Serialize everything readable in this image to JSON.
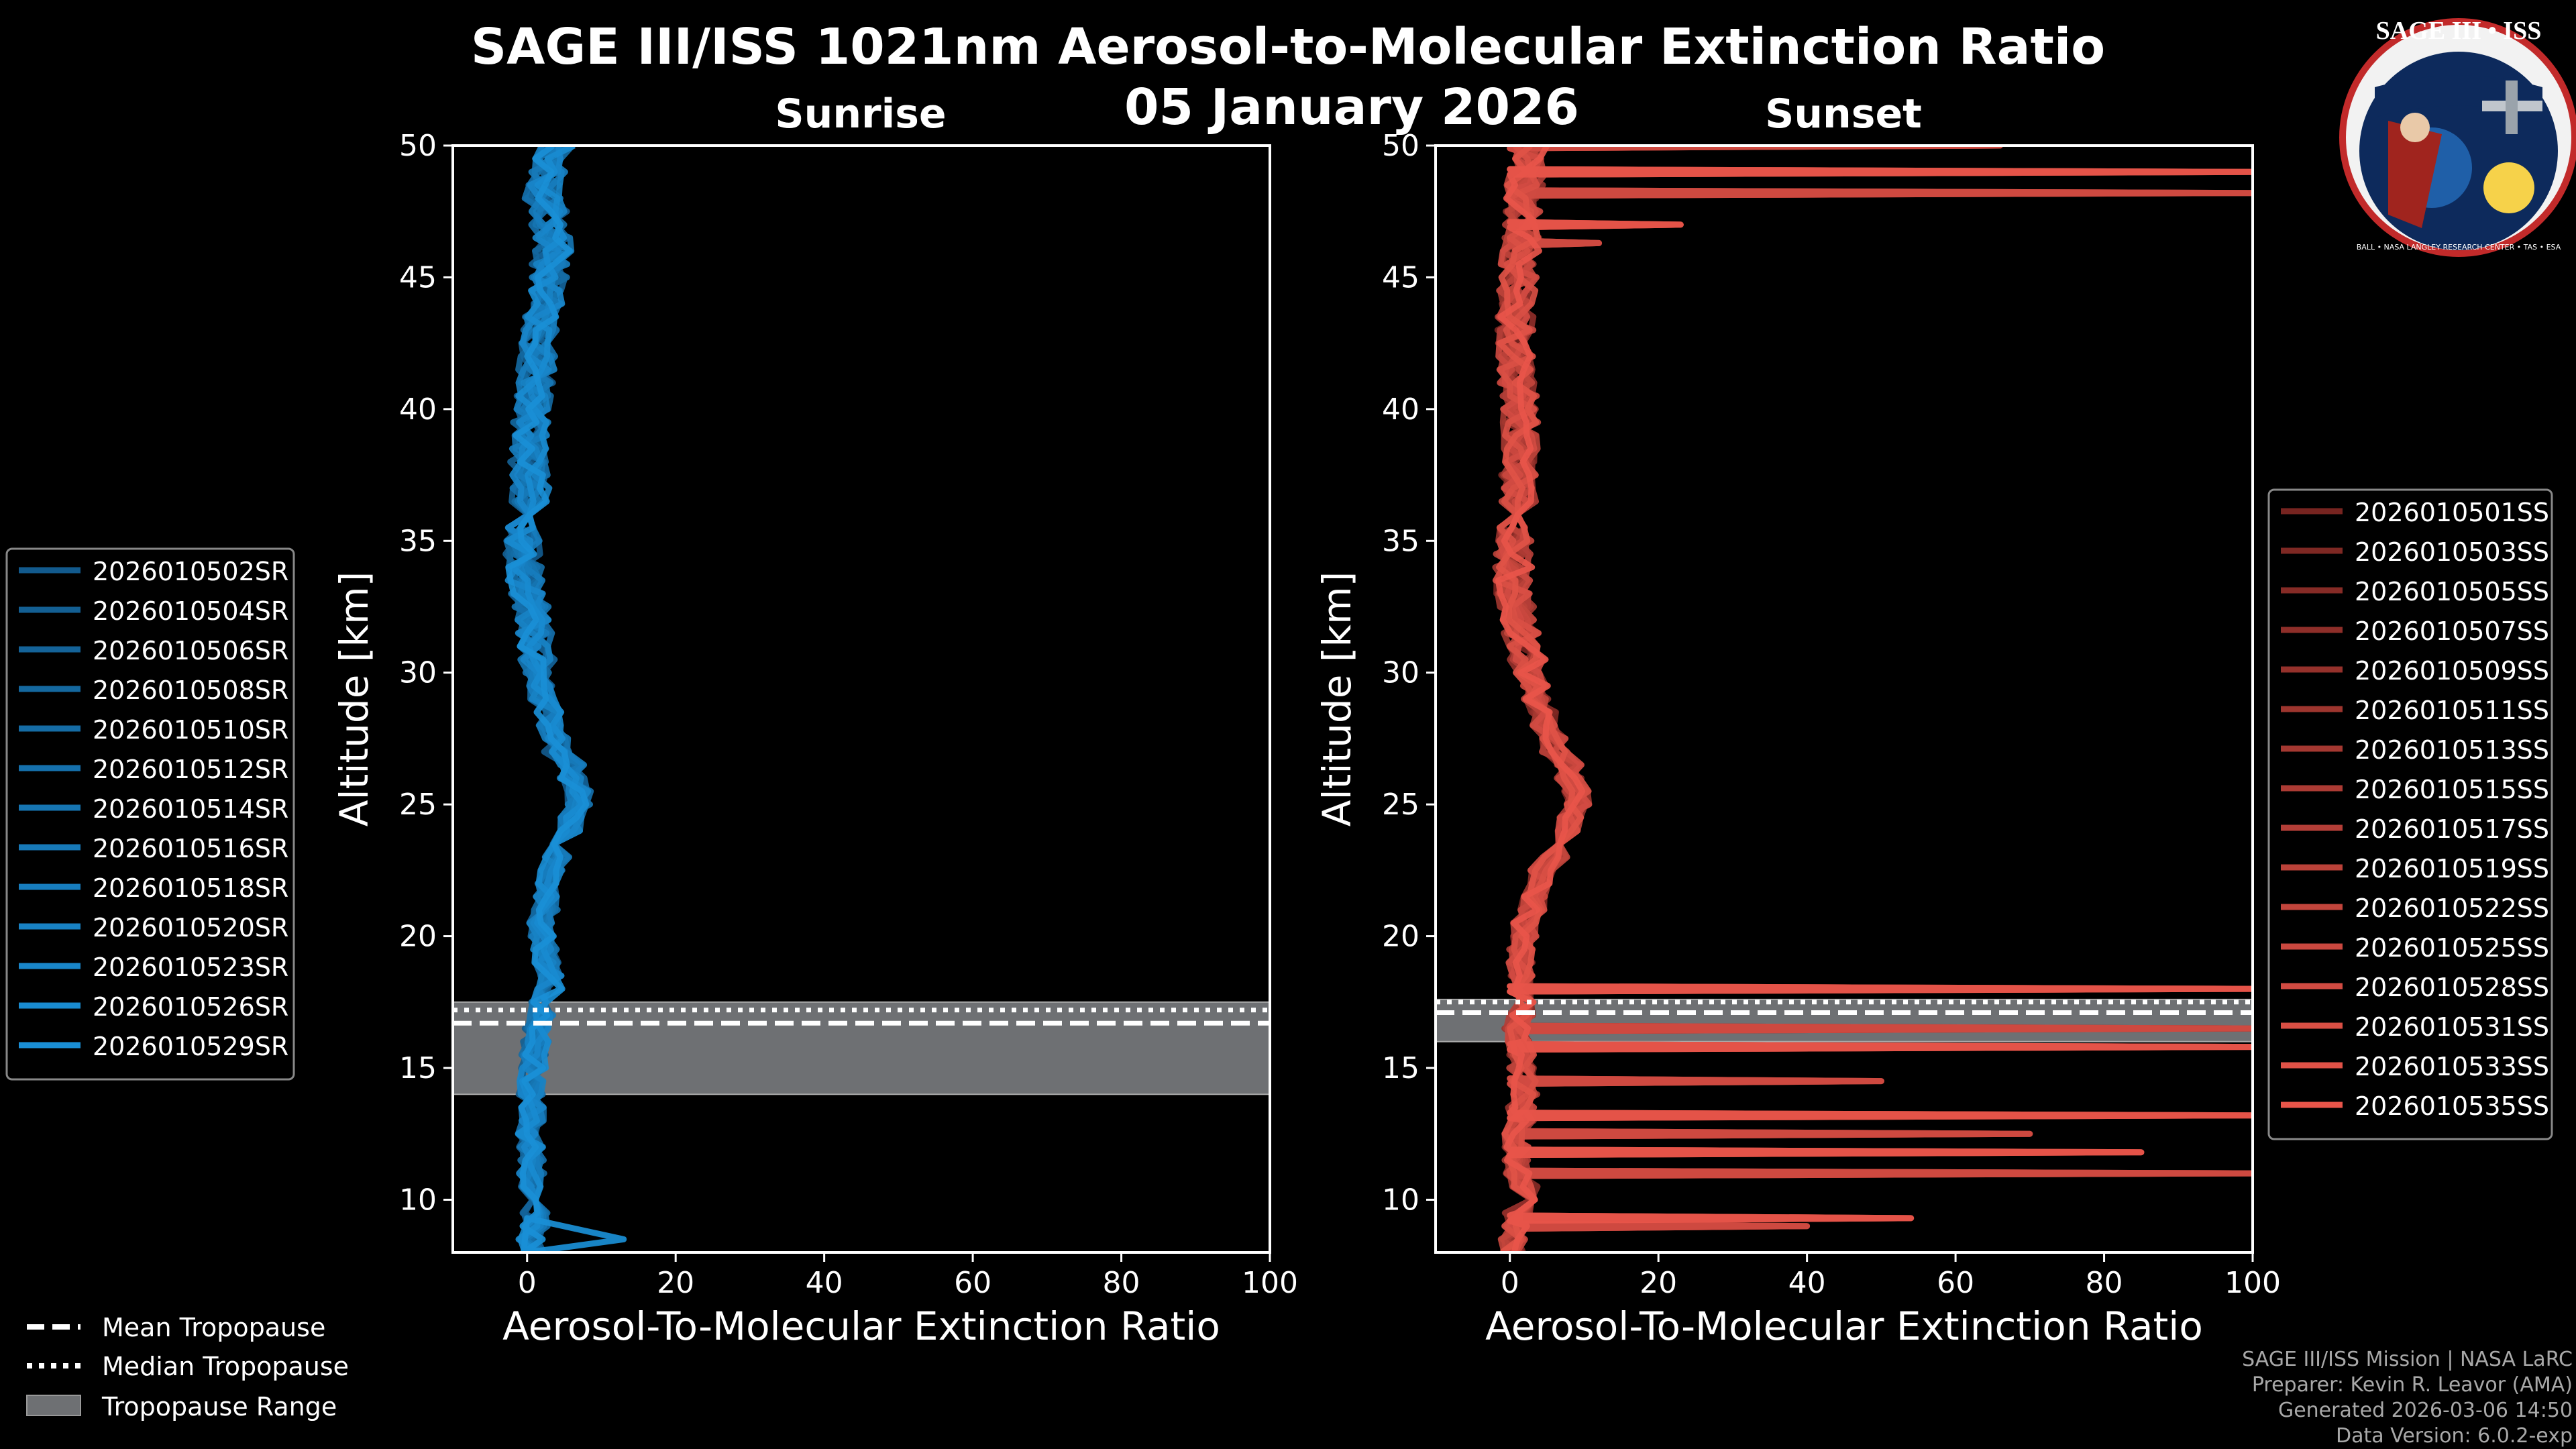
{
  "title_line1": "SAGE III/ISS 1021nm Aerosol-to-Molecular Extinction Ratio",
  "title_line2": "05 January 2026",
  "logo": {
    "text": "SAGE III • ISS",
    "ring": "BALL • NASA LANGLEY RESEARCH CENTER • TAS • ESA"
  },
  "footer": [
    "SAGE III/ISS Mission | NASA LaRC",
    "Preparer: Kevin R. Leavor (AMA)",
    "Generated 2026-03-06 14:50",
    "Data Version: 6.0.2-exp"
  ],
  "tropo_legend": [
    "Mean Tropopause",
    "Median Tropopause",
    "Tropopause Range"
  ],
  "colors": {
    "sunrise": "#1a8fd6",
    "sunset": "#e8554a",
    "tropo_fill": "#6e7073"
  },
  "chart_data": [
    {
      "type": "line",
      "title": "Sunrise",
      "xlabel": "Aerosol-To-Molecular Extinction Ratio",
      "ylabel": "Altitude [km]",
      "xlim": [
        -10,
        100
      ],
      "ylim": [
        8,
        50
      ],
      "xticks": [
        0,
        20,
        40,
        60,
        80,
        100
      ],
      "yticks": [
        10,
        15,
        20,
        25,
        30,
        35,
        40,
        45,
        50
      ],
      "tropopause": {
        "mean": 16.7,
        "median": 17.2,
        "range": [
          14.0,
          17.5
        ]
      },
      "profile_points": {
        "alt": [
          8,
          9,
          10,
          11,
          12,
          13,
          14,
          15,
          16,
          17,
          18,
          19,
          20,
          21,
          22,
          23,
          24,
          25,
          26,
          27,
          28,
          29,
          30,
          31,
          32,
          33,
          34,
          35,
          36,
          37,
          38,
          39,
          40,
          41,
          42,
          43,
          44,
          45,
          46,
          47,
          48,
          49,
          50
        ],
        "val": [
          0.5,
          1,
          0.8,
          0.6,
          0.5,
          0.5,
          0.6,
          0.8,
          1.2,
          2,
          3,
          2.5,
          2,
          2.5,
          3,
          4,
          6,
          7,
          6,
          4,
          3,
          2,
          1.5,
          1,
          0.5,
          -0.2,
          -0.5,
          -0.3,
          0.2,
          0.5,
          0.2,
          0.5,
          0.8,
          1.2,
          1.5,
          2,
          2.5,
          3,
          3.5,
          3,
          2,
          3,
          4
        ]
      },
      "series": [
        {
          "name": "2026010502SR"
        },
        {
          "name": "2026010504SR"
        },
        {
          "name": "2026010506SR"
        },
        {
          "name": "2026010508SR"
        },
        {
          "name": "2026010510SR"
        },
        {
          "name": "2026010512SR"
        },
        {
          "name": "2026010514SR"
        },
        {
          "name": "2026010516SR"
        },
        {
          "name": "2026010518SR"
        },
        {
          "name": "2026010520SR"
        },
        {
          "name": "2026010523SR"
        },
        {
          "name": "2026010526SR"
        },
        {
          "name": "2026010529SR"
        }
      ]
    },
    {
      "type": "line",
      "title": "Sunset",
      "xlabel": "Aerosol-To-Molecular Extinction Ratio",
      "ylabel": "Altitude [km]",
      "xlim": [
        -10,
        100
      ],
      "ylim": [
        8,
        50
      ],
      "xticks": [
        0,
        20,
        40,
        60,
        80,
        100
      ],
      "yticks": [
        10,
        15,
        20,
        25,
        30,
        35,
        40,
        45,
        50
      ],
      "tropopause": {
        "mean": 17.1,
        "median": 17.5,
        "range": [
          16.0,
          17.6
        ]
      },
      "profile_points": {
        "alt": [
          8,
          9,
          10,
          11,
          12,
          13,
          14,
          15,
          16,
          17,
          18,
          19,
          20,
          21,
          22,
          23,
          24,
          25,
          26,
          27,
          28,
          29,
          30,
          31,
          32,
          33,
          34,
          35,
          36,
          37,
          38,
          39,
          40,
          41,
          42,
          43,
          44,
          45,
          46,
          47,
          48,
          49,
          50
        ],
        "val": [
          0.5,
          1,
          2,
          1,
          1,
          1.5,
          2,
          1.5,
          1,
          1.5,
          1.8,
          1.5,
          2,
          3,
          4.5,
          6,
          8,
          9,
          8,
          6,
          4.5,
          3.5,
          2.5,
          1.5,
          0.8,
          0.5,
          0.5,
          0.8,
          1,
          1.2,
          1.5,
          1.5,
          1.2,
          1,
          0.8,
          0.8,
          1,
          1.2,
          1.5,
          1.8,
          2,
          2.5,
          3
        ]
      },
      "spikes": [
        {
          "alt": 50.0,
          "x": 66
        },
        {
          "alt": 49.0,
          "x": 100
        },
        {
          "alt": 48.2,
          "x": 100
        },
        {
          "alt": 47.0,
          "x": 23
        },
        {
          "alt": 46.3,
          "x": 12
        },
        {
          "alt": 18.0,
          "x": 100
        },
        {
          "alt": 16.5,
          "x": 100
        },
        {
          "alt": 15.8,
          "x": 100
        },
        {
          "alt": 14.5,
          "x": 50
        },
        {
          "alt": 13.2,
          "x": 100
        },
        {
          "alt": 12.5,
          "x": 70
        },
        {
          "alt": 11.8,
          "x": 85
        },
        {
          "alt": 11.0,
          "x": 100
        },
        {
          "alt": 9.3,
          "x": 54
        },
        {
          "alt": 9.0,
          "x": 40
        }
      ],
      "series": [
        {
          "name": "2026010501SS"
        },
        {
          "name": "2026010503SS"
        },
        {
          "name": "2026010505SS"
        },
        {
          "name": "2026010507SS"
        },
        {
          "name": "2026010509SS"
        },
        {
          "name": "2026010511SS"
        },
        {
          "name": "2026010513SS"
        },
        {
          "name": "2026010515SS"
        },
        {
          "name": "2026010517SS"
        },
        {
          "name": "2026010519SS"
        },
        {
          "name": "2026010522SS"
        },
        {
          "name": "2026010525SS"
        },
        {
          "name": "2026010528SS"
        },
        {
          "name": "2026010531SS"
        },
        {
          "name": "2026010533SS"
        },
        {
          "name": "2026010535SS"
        }
      ]
    }
  ]
}
